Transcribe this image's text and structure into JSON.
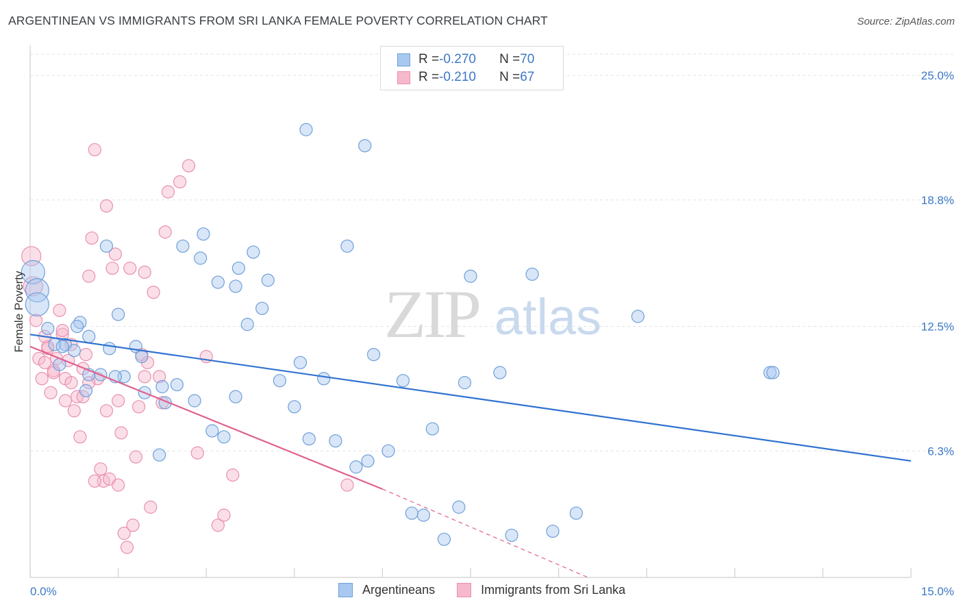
{
  "title": "ARGENTINEAN VS IMMIGRANTS FROM SRI LANKA FEMALE POVERTY CORRELATION CHART",
  "source": "Source: ZipAtlas.com",
  "watermark": {
    "zip": "ZIP",
    "atlas": "atlas"
  },
  "legend": {
    "rows": [
      {
        "r_label": "R = ",
        "r_value": "-0.270",
        "n_label": "N = ",
        "n_value": "70"
      },
      {
        "r_label": "R = ",
        "r_value": "-0.210",
        "n_label": "N = ",
        "n_value": "67"
      }
    ]
  },
  "colors": {
    "blue_fill": "#a9c8ef",
    "blue_stroke": "#6f9fd8",
    "blue_line": "#2f72d0",
    "pink_fill": "#f6b9cc",
    "pink_stroke": "#e98fae",
    "pink_line": "#e0608e",
    "axis_text": "#3b78c6",
    "grid": "#e2e2e2"
  },
  "chart_data": {
    "type": "scatter",
    "title": "ARGENTINEAN VS IMMIGRANTS FROM SRI LANKA FEMALE POVERTY CORRELATION CHART",
    "xlabel": "",
    "ylabel": "Female Poverty",
    "xlim": [
      0,
      15
    ],
    "ylim": [
      0,
      26.3
    ],
    "x_tick_labels": [
      "0.0%",
      "15.0%"
    ],
    "y_ticks": [
      6.3,
      12.5,
      18.8,
      25.0
    ],
    "y_tick_labels": [
      "6.3%",
      "12.5%",
      "18.8%",
      "25.0%"
    ],
    "grid": true,
    "legend_position": "bottom",
    "series": [
      {
        "name": "Argentineans",
        "r": -0.27,
        "n": 70,
        "trend": {
          "x": [
            0,
            15
          ],
          "y": [
            12.1,
            5.8
          ]
        },
        "points": [
          [
            0.05,
            15.2
          ],
          [
            0.12,
            14.3
          ],
          [
            0.12,
            13.6
          ],
          [
            0.3,
            12.4
          ],
          [
            0.42,
            11.6
          ],
          [
            0.5,
            10.6
          ],
          [
            0.6,
            11.6
          ],
          [
            0.75,
            11.3
          ],
          [
            0.85,
            12.7
          ],
          [
            0.95,
            9.3
          ],
          [
            1.0,
            10.1
          ],
          [
            1.2,
            10.1
          ],
          [
            1.35,
            11.4
          ],
          [
            1.5,
            13.1
          ],
          [
            1.6,
            10.0
          ],
          [
            1.45,
            10.0
          ],
          [
            1.8,
            11.5
          ],
          [
            1.95,
            9.2
          ],
          [
            2.2,
            6.1
          ],
          [
            2.3,
            8.7
          ],
          [
            2.5,
            9.6
          ],
          [
            2.6,
            16.5
          ],
          [
            2.9,
            15.9
          ],
          [
            2.95,
            17.1
          ],
          [
            3.1,
            7.3
          ],
          [
            3.3,
            7.0
          ],
          [
            3.5,
            14.5
          ],
          [
            3.2,
            14.7
          ],
          [
            3.55,
            15.4
          ],
          [
            3.7,
            12.6
          ],
          [
            3.8,
            16.2
          ],
          [
            3.95,
            13.4
          ],
          [
            4.05,
            14.8
          ],
          [
            4.25,
            9.8
          ],
          [
            4.5,
            8.5
          ],
          [
            4.6,
            10.7
          ],
          [
            4.75,
            6.9
          ],
          [
            5.0,
            9.9
          ],
          [
            5.2,
            6.8
          ],
          [
            5.4,
            16.5
          ],
          [
            5.55,
            5.5
          ],
          [
            5.75,
            5.8
          ],
          [
            6.1,
            6.3
          ],
          [
            5.85,
            11.1
          ],
          [
            6.5,
            3.2
          ],
          [
            6.35,
            9.8
          ],
          [
            6.7,
            3.1
          ],
          [
            6.85,
            7.4
          ],
          [
            7.05,
            1.9
          ],
          [
            7.3,
            3.5
          ],
          [
            7.4,
            9.7
          ],
          [
            7.5,
            15.0
          ],
          [
            8.0,
            10.2
          ],
          [
            8.2,
            2.1
          ],
          [
            8.55,
            15.1
          ],
          [
            8.9,
            2.3
          ],
          [
            9.3,
            3.2
          ],
          [
            10.35,
            13.0
          ],
          [
            12.6,
            10.2
          ],
          [
            12.65,
            10.2
          ],
          [
            5.7,
            21.5
          ],
          [
            4.7,
            22.3
          ],
          [
            1.3,
            16.5
          ],
          [
            0.8,
            12.5
          ],
          [
            0.55,
            11.5
          ],
          [
            1.0,
            12.0
          ],
          [
            1.9,
            11.0
          ],
          [
            2.25,
            9.5
          ],
          [
            2.8,
            8.8
          ],
          [
            3.5,
            9.0
          ]
        ]
      },
      {
        "name": "Immigrants from Sri Lanka",
        "r": -0.21,
        "n": 67,
        "trend": {
          "x": [
            0,
            6
          ],
          "y": [
            11.5,
            4.4
          ]
        },
        "trend_dashed": {
          "x": [
            6,
            9.5
          ],
          "y": [
            4.4,
            0.0
          ]
        },
        "points": [
          [
            0.02,
            16.0
          ],
          [
            0.05,
            14.5
          ],
          [
            0.1,
            12.8
          ],
          [
            0.15,
            10.9
          ],
          [
            0.2,
            9.9
          ],
          [
            0.25,
            10.7
          ],
          [
            0.3,
            11.4
          ],
          [
            0.35,
            9.2
          ],
          [
            0.4,
            10.3
          ],
          [
            0.45,
            10.9
          ],
          [
            0.5,
            13.3
          ],
          [
            0.55,
            12.1
          ],
          [
            0.6,
            9.9
          ],
          [
            0.65,
            10.8
          ],
          [
            0.7,
            9.7
          ],
          [
            0.75,
            8.3
          ],
          [
            0.8,
            9.0
          ],
          [
            0.85,
            7.0
          ],
          [
            0.9,
            10.4
          ],
          [
            0.95,
            11.1
          ],
          [
            1.0,
            15.0
          ],
          [
            1.05,
            16.9
          ],
          [
            1.1,
            21.3
          ],
          [
            1.15,
            9.9
          ],
          [
            1.2,
            5.4
          ],
          [
            1.25,
            4.8
          ],
          [
            1.3,
            8.3
          ],
          [
            1.35,
            4.9
          ],
          [
            1.4,
            15.4
          ],
          [
            1.45,
            16.1
          ],
          [
            1.5,
            4.6
          ],
          [
            1.55,
            7.2
          ],
          [
            1.6,
            2.2
          ],
          [
            1.65,
            1.5
          ],
          [
            1.7,
            15.4
          ],
          [
            1.75,
            2.6
          ],
          [
            1.8,
            6.0
          ],
          [
            1.85,
            8.5
          ],
          [
            1.9,
            11.1
          ],
          [
            1.95,
            15.2
          ],
          [
            2.0,
            10.7
          ],
          [
            2.05,
            3.5
          ],
          [
            2.1,
            14.2
          ],
          [
            2.2,
            10.0
          ],
          [
            2.25,
            8.7
          ],
          [
            2.3,
            17.2
          ],
          [
            2.35,
            19.2
          ],
          [
            2.55,
            19.7
          ],
          [
            2.7,
            20.5
          ],
          [
            2.85,
            6.2
          ],
          [
            3.0,
            11.0
          ],
          [
            3.2,
            2.6
          ],
          [
            3.3,
            3.1
          ],
          [
            3.45,
            5.1
          ],
          [
            5.4,
            4.6
          ],
          [
            0.55,
            12.3
          ],
          [
            0.6,
            8.8
          ],
          [
            0.7,
            11.6
          ],
          [
            1.0,
            9.7
          ],
          [
            1.3,
            18.5
          ],
          [
            0.9,
            9.0
          ],
          [
            0.3,
            11.5
          ],
          [
            0.4,
            10.2
          ],
          [
            1.5,
            8.8
          ],
          [
            1.95,
            10.0
          ],
          [
            0.25,
            12.0
          ],
          [
            1.1,
            4.8
          ]
        ]
      }
    ]
  },
  "bottom_legend": [
    "Argentineans",
    "Immigrants from Sri Lanka"
  ]
}
